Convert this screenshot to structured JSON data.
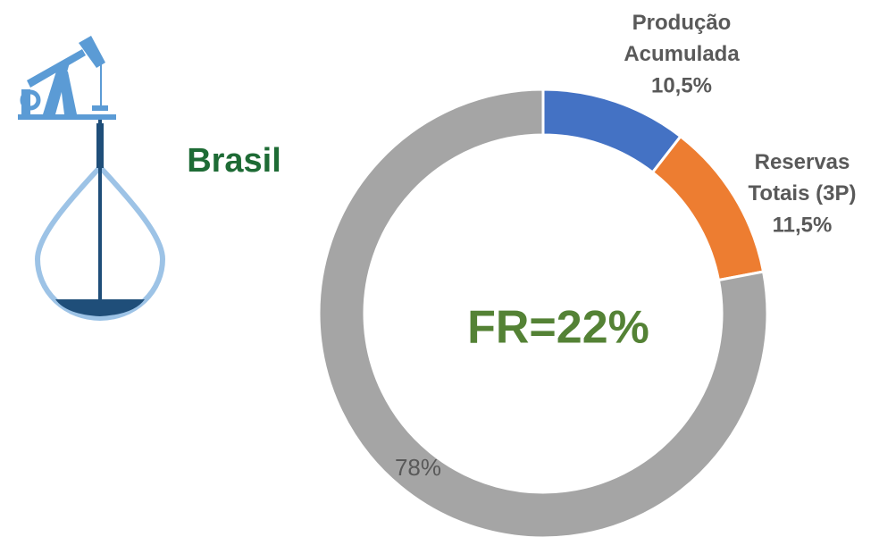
{
  "chart_data": {
    "type": "pie",
    "donut": true,
    "center_label": "FR=22%",
    "annotation": "Brasil",
    "categories": [
      "Produção Acumulada",
      "Reservas Totais (3P)",
      null
    ],
    "values": [
      10.5,
      11.5,
      78
    ],
    "value_labels": [
      "10,5%",
      "11,5%",
      "78%"
    ],
    "colors": [
      "#4472c4",
      "#ed7d31",
      "#a5a5a5"
    ]
  }
}
